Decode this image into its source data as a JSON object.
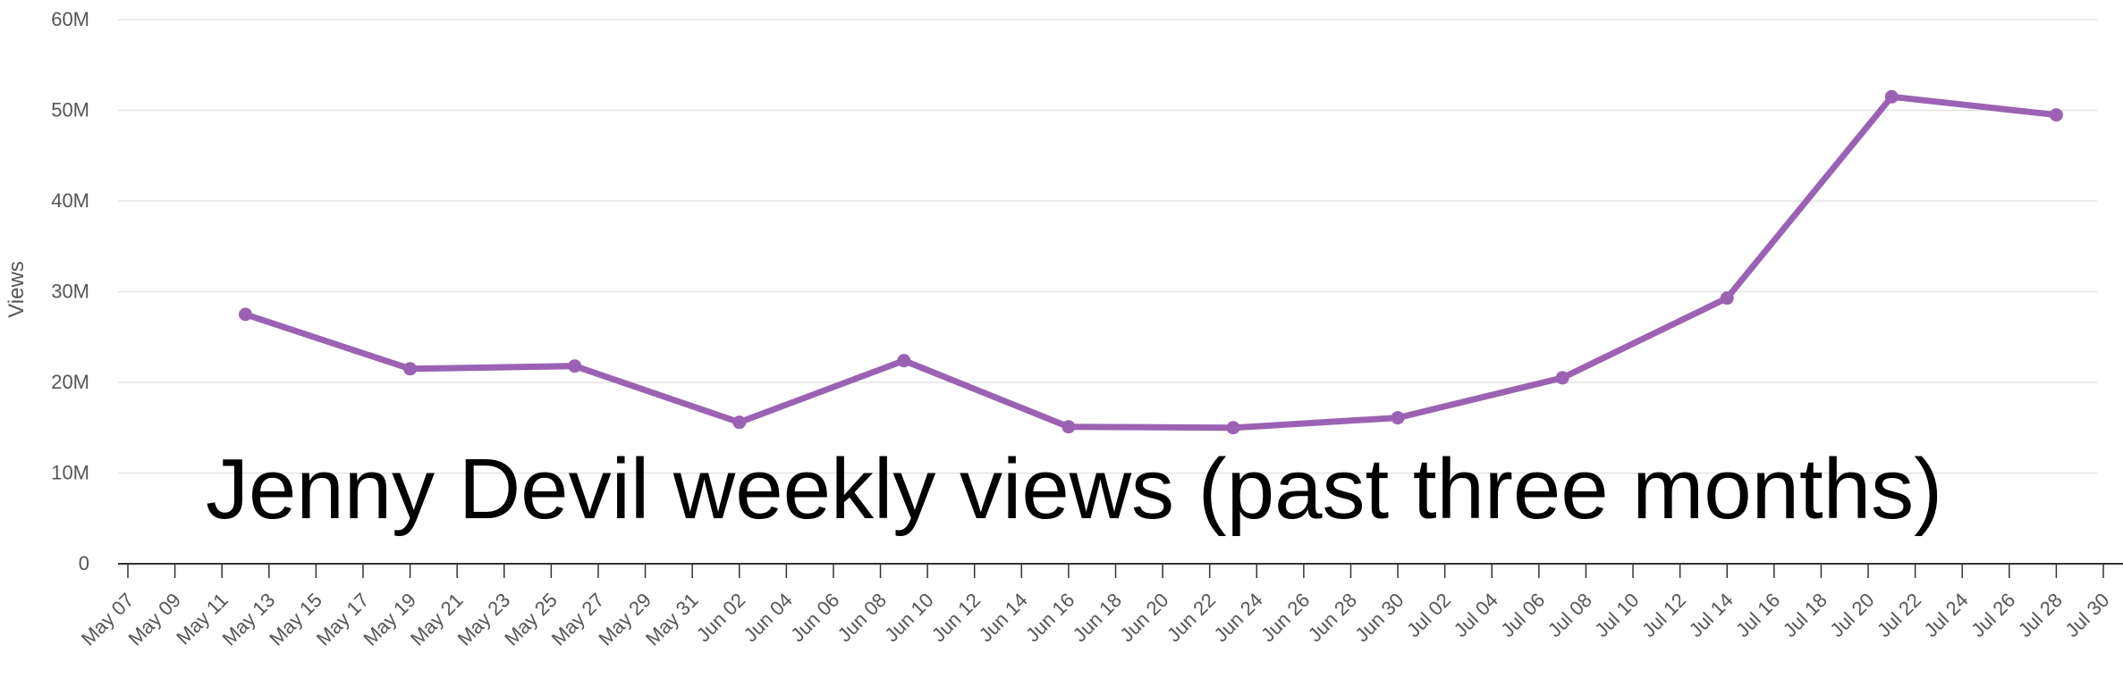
{
  "chart_data": {
    "type": "line",
    "title": "Jenny Devil weekly views (past three months)",
    "xlabel": "",
    "ylabel": "Views",
    "x_ticks": [
      "May 07",
      "May 09",
      "May 11",
      "May 13",
      "May 15",
      "May 17",
      "May 19",
      "May 21",
      "May 23",
      "May 25",
      "May 27",
      "May 29",
      "May 31",
      "Jun 02",
      "Jun 04",
      "Jun 06",
      "Jun 08",
      "Jun 10",
      "Jun 12",
      "Jun 14",
      "Jun 16",
      "Jun 18",
      "Jun 20",
      "Jun 22",
      "Jun 24",
      "Jun 26",
      "Jun 28",
      "Jun 30",
      "Jul 02",
      "Jul 04",
      "Jul 06",
      "Jul 08",
      "Jul 10",
      "Jul 12",
      "Jul 14",
      "Jul 16",
      "Jul 18",
      "Jul 20",
      "Jul 22",
      "Jul 24",
      "Jul 26",
      "Jul 28",
      "Jul 30"
    ],
    "y_ticks": [
      "0",
      "10M",
      "20M",
      "30M",
      "40M",
      "50M",
      "60M"
    ],
    "ylim": [
      0,
      60000000
    ],
    "grid": true,
    "color": "#9b62b3",
    "series": [
      {
        "x": [
          "May 12",
          "May 19",
          "May 26",
          "Jun 02",
          "Jun 09",
          "Jun 16",
          "Jun 23",
          "Jun 30",
          "Jul 07",
          "Jul 14",
          "Jul 21",
          "Jul 28"
        ],
        "values": [
          27500000,
          21500000,
          21800000,
          15600000,
          22400000,
          15100000,
          15000000,
          16100000,
          20500000,
          29300000,
          51500000,
          49500000
        ]
      }
    ]
  }
}
